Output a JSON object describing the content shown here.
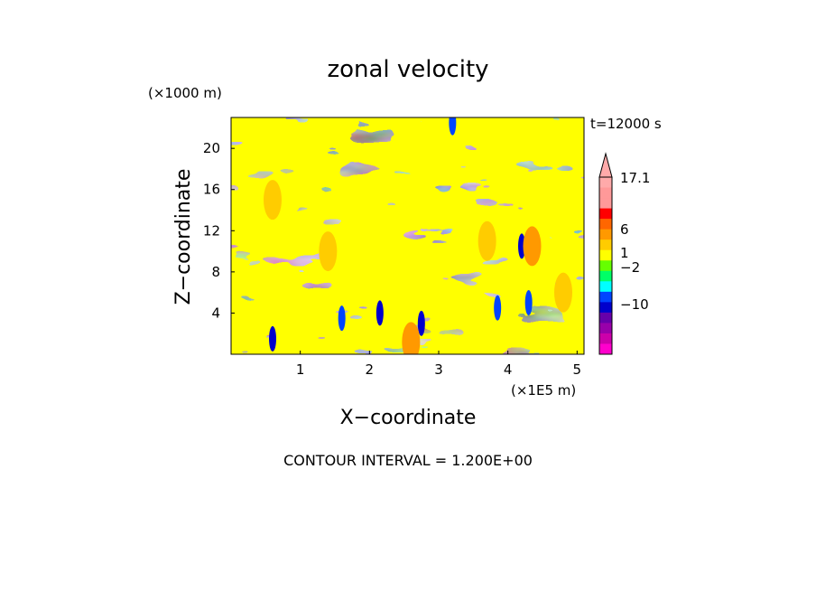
{
  "chart_data": {
    "type": "heatmap",
    "title": "zonal velocity",
    "xlabel": "X−coordinate",
    "ylabel": "Z−coordinate",
    "x_unit_label": "(×1E5 m)",
    "y_unit_label": "(×1000 m)",
    "time_label": "t=12000 s",
    "footer": "CONTOUR INTERVAL = 1.200E+00",
    "xlim": [
      0,
      5.1
    ],
    "ylim": [
      0,
      23
    ],
    "x_ticks": [
      1,
      2,
      3,
      4,
      5
    ],
    "y_ticks": [
      4,
      8,
      12,
      16,
      20
    ],
    "colorbar": {
      "colors": [
        "#ff00cc",
        "#cc00aa",
        "#9900aa",
        "#6600aa",
        "#0000cc",
        "#0044ff",
        "#00ffff",
        "#00ff66",
        "#66ff00",
        "#ffff00",
        "#ffcc00",
        "#ff9900",
        "#ff6600",
        "#ff0000",
        "#ff9999",
        "#ff9999",
        "#ffaaaa"
      ],
      "tick_labels": [
        "17.1",
        "6",
        "1",
        "−2",
        "−10"
      ]
    },
    "features": [
      {
        "kind": "vortex",
        "x": 0.6,
        "z": 1.5,
        "value": -8
      },
      {
        "kind": "vortex",
        "x": 1.6,
        "z": 3.5,
        "value": -6
      },
      {
        "kind": "vortex",
        "x": 2.15,
        "z": 4.0,
        "value": -8
      },
      {
        "kind": "vortex",
        "x": 2.75,
        "z": 3.0,
        "value": -8
      },
      {
        "kind": "vortex",
        "x": 3.85,
        "z": 4.5,
        "value": -6
      },
      {
        "kind": "vortex",
        "x": 4.2,
        "z": 10.5,
        "value": -8
      },
      {
        "kind": "vortex",
        "x": 4.3,
        "z": 5.0,
        "value": -6
      },
      {
        "kind": "vortex",
        "x": 3.2,
        "z": 22.5,
        "value": -4
      },
      {
        "kind": "jet",
        "x": 4.35,
        "z": 10.5,
        "value": 5
      },
      {
        "kind": "jet",
        "x": 2.6,
        "z": 1.2,
        "value": 5
      },
      {
        "kind": "jet",
        "x": 0.6,
        "z": 15.0,
        "value": 3
      },
      {
        "kind": "jet",
        "x": 3.7,
        "z": 11.0,
        "value": 3
      },
      {
        "kind": "jet",
        "x": 4.8,
        "z": 6.0,
        "value": 3
      },
      {
        "kind": "jet",
        "x": 1.4,
        "z": 10.0,
        "value": 2
      }
    ]
  }
}
